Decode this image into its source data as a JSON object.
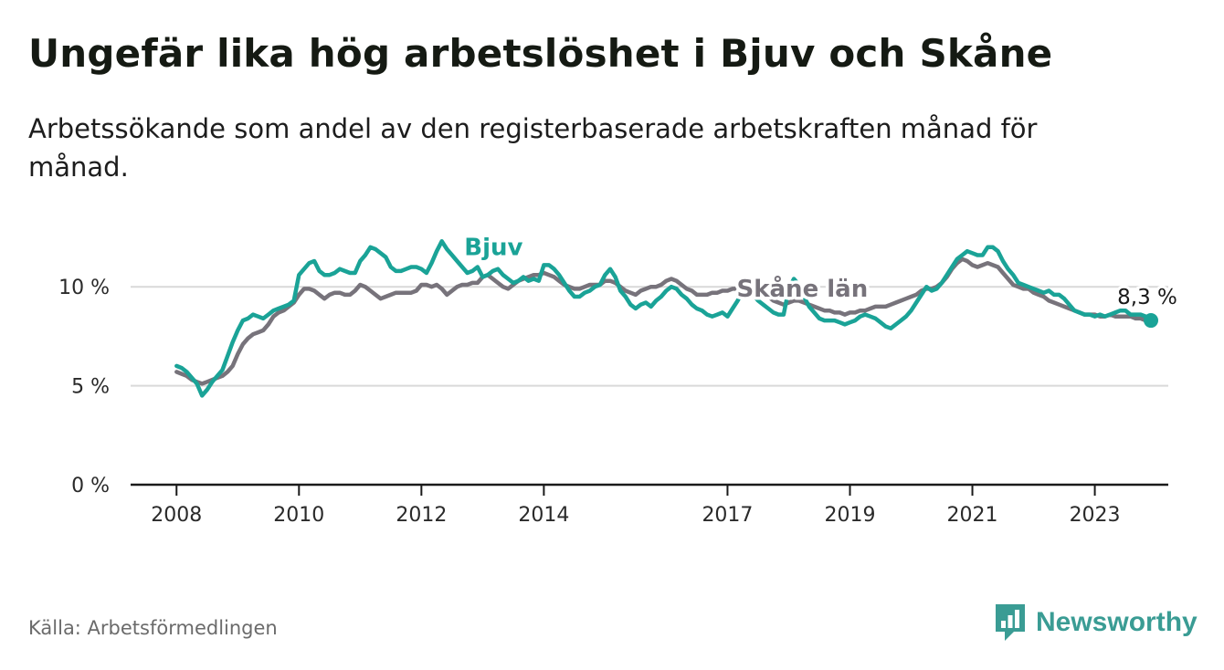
{
  "title": "Ungefär lika hög arbetslöshet i Bjuv och Skåne",
  "subtitle": "Arbetssökande som andel av den registerbaserade arbetskraften månad för månad.",
  "source": "Källa: Arbetsförmedlingen",
  "brand": {
    "name": "Newsworthy",
    "icon": "newsworthy-logo-icon"
  },
  "colors": {
    "bjuv": "#1aa397",
    "skane": "#77737b",
    "grid": "#d9d9d9",
    "axis": "#1a1a1a",
    "brand": "#3a9c94"
  },
  "chart_data": {
    "type": "line",
    "x_start": 2008.0,
    "step": "monthly",
    "xlim": [
      2007.25,
      2024.2
    ],
    "ylim": [
      0,
      12.5
    ],
    "yticks": [
      0,
      5,
      10
    ],
    "ytick_labels": [
      "0 %",
      "5 %",
      "10 %"
    ],
    "xticks": [
      2008,
      2010,
      2012,
      2014,
      2017,
      2019,
      2021,
      2023
    ],
    "xtick_labels": [
      "2008",
      "2010",
      "2012",
      "2014",
      "2017",
      "2019",
      "2021",
      "2023"
    ],
    "grid": true,
    "end_label": "8,3 %",
    "series": [
      {
        "name": "Bjuv",
        "label": "Bjuv",
        "values": [
          6.0,
          5.9,
          5.7,
          5.4,
          5.1,
          4.5,
          4.8,
          5.2,
          5.5,
          5.8,
          6.5,
          7.2,
          7.8,
          8.3,
          8.4,
          8.6,
          8.5,
          8.4,
          8.6,
          8.8,
          8.9,
          9.0,
          9.1,
          9.3,
          10.6,
          10.9,
          11.2,
          11.3,
          10.8,
          10.6,
          10.6,
          10.7,
          10.9,
          10.8,
          10.7,
          10.7,
          11.3,
          11.6,
          12.0,
          11.9,
          11.7,
          11.5,
          11.0,
          10.8,
          10.8,
          10.9,
          11.0,
          11.0,
          10.9,
          10.7,
          11.2,
          11.8,
          12.3,
          11.9,
          11.6,
          11.3,
          11.0,
          10.7,
          10.8,
          11.0,
          10.5,
          10.6,
          10.8,
          10.9,
          10.6,
          10.4,
          10.2,
          10.3,
          10.5,
          10.3,
          10.4,
          10.3,
          11.1,
          11.1,
          10.9,
          10.6,
          10.2,
          9.8,
          9.5,
          9.5,
          9.7,
          9.8,
          10.0,
          10.1,
          10.6,
          10.9,
          10.5,
          9.8,
          9.5,
          9.1,
          8.9,
          9.1,
          9.2,
          9.0,
          9.3,
          9.5,
          9.8,
          10.0,
          9.9,
          9.6,
          9.4,
          9.1,
          8.9,
          8.8,
          8.6,
          8.5,
          8.6,
          8.7,
          8.5,
          8.9,
          9.3,
          9.8,
          9.9,
          9.6,
          9.3,
          9.1,
          8.9,
          8.7,
          8.6,
          8.6,
          9.9,
          10.4,
          10.1,
          9.5,
          9.0,
          8.7,
          8.4,
          8.3,
          8.3,
          8.3,
          8.2,
          8.1,
          8.2,
          8.3,
          8.5,
          8.6,
          8.5,
          8.4,
          8.2,
          8.0,
          7.9,
          8.1,
          8.3,
          8.5,
          8.8,
          9.2,
          9.6,
          10.0,
          9.8,
          9.9,
          10.2,
          10.6,
          11.0,
          11.4,
          11.6,
          11.8,
          11.7,
          11.6,
          11.6,
          12.0,
          12.0,
          11.8,
          11.3,
          10.9,
          10.6,
          10.2,
          10.1,
          10.0,
          9.9,
          9.8,
          9.7,
          9.8,
          9.6,
          9.6,
          9.4,
          9.1,
          8.8,
          8.7,
          8.6,
          8.6,
          8.5,
          8.6,
          8.5,
          8.6,
          8.7,
          8.8,
          8.8,
          8.6,
          8.6,
          8.6,
          8.5,
          8.3
        ]
      },
      {
        "name": "Skåne län",
        "label": "Skåne län",
        "values": [
          5.7,
          5.6,
          5.5,
          5.3,
          5.2,
          5.1,
          5.2,
          5.3,
          5.4,
          5.5,
          5.7,
          6.0,
          6.6,
          7.1,
          7.4,
          7.6,
          7.7,
          7.8,
          8.1,
          8.5,
          8.7,
          8.8,
          9.0,
          9.2,
          9.6,
          9.9,
          9.9,
          9.8,
          9.6,
          9.4,
          9.6,
          9.7,
          9.7,
          9.6,
          9.6,
          9.8,
          10.1,
          10.0,
          9.8,
          9.6,
          9.4,
          9.5,
          9.6,
          9.7,
          9.7,
          9.7,
          9.7,
          9.8,
          10.1,
          10.1,
          10.0,
          10.1,
          9.9,
          9.6,
          9.8,
          10.0,
          10.1,
          10.1,
          10.2,
          10.2,
          10.5,
          10.6,
          10.4,
          10.2,
          10.0,
          9.9,
          10.1,
          10.3,
          10.4,
          10.5,
          10.6,
          10.6,
          10.7,
          10.6,
          10.5,
          10.3,
          10.1,
          10.0,
          9.9,
          9.9,
          10.0,
          10.1,
          10.1,
          10.1,
          10.3,
          10.3,
          10.2,
          10.0,
          9.8,
          9.7,
          9.6,
          9.8,
          9.9,
          10.0,
          10.0,
          10.1,
          10.3,
          10.4,
          10.3,
          10.1,
          9.9,
          9.8,
          9.6,
          9.6,
          9.6,
          9.7,
          9.7,
          9.8,
          9.8,
          9.9,
          9.9,
          10.0,
          10.0,
          9.9,
          9.8,
          9.7,
          9.5,
          9.3,
          9.2,
          9.1,
          9.2,
          9.3,
          9.3,
          9.2,
          9.1,
          9.0,
          8.9,
          8.8,
          8.8,
          8.7,
          8.7,
          8.6,
          8.7,
          8.7,
          8.8,
          8.8,
          8.9,
          9.0,
          9.0,
          9.0,
          9.1,
          9.2,
          9.3,
          9.4,
          9.5,
          9.6,
          9.8,
          9.9,
          9.9,
          10.0,
          10.2,
          10.5,
          10.9,
          11.2,
          11.4,
          11.3,
          11.1,
          11.0,
          11.1,
          11.2,
          11.1,
          11.0,
          10.7,
          10.4,
          10.1,
          10.0,
          9.9,
          9.9,
          9.7,
          9.6,
          9.5,
          9.3,
          9.2,
          9.1,
          9.0,
          8.9,
          8.8,
          8.7,
          8.6,
          8.6,
          8.6,
          8.5,
          8.5,
          8.6,
          8.5,
          8.5,
          8.5,
          8.5,
          8.4,
          8.4,
          8.3,
          8.2
        ]
      }
    ]
  }
}
